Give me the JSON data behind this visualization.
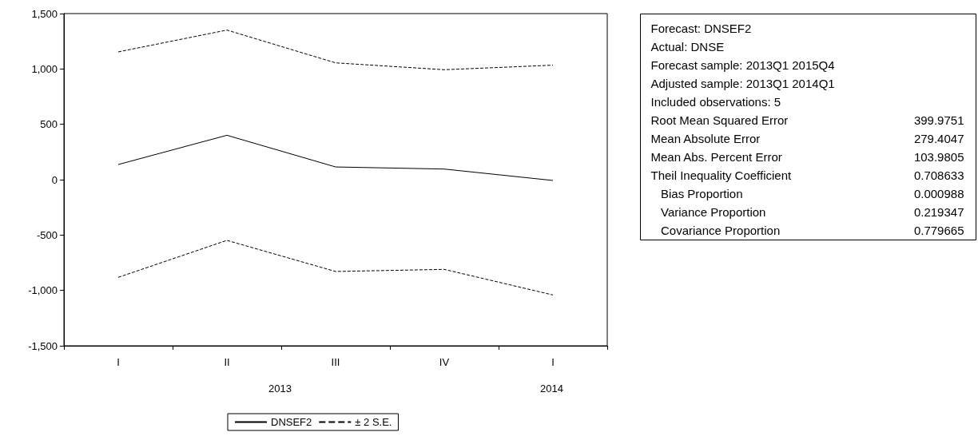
{
  "chart_data": {
    "type": "line",
    "categories": [
      "I",
      "II",
      "III",
      "IV",
      "I"
    ],
    "series": [
      {
        "name": "DNSEF2",
        "color": "#000000",
        "line_style": "solid",
        "values": [
          137,
          401,
          115,
          96,
          -7
        ]
      },
      {
        "name": "± 2 S.E.",
        "color": "#000000",
        "line_style": "dashed",
        "values": [
          1154,
          1351,
          1055,
          993,
          1034
        ]
      },
      {
        "color": "#000000",
        "line_style": "dashed",
        "values": [
          -882,
          -548,
          -829,
          -810,
          -1041
        ]
      }
    ],
    "ylim": [
      -1500,
      1500
    ],
    "yticks": [
      {
        "value": -1500,
        "label": "-1,500"
      },
      {
        "value": -1000,
        "label": "-1,000"
      },
      {
        "value": -500,
        "label": "-500"
      },
      0,
      {
        "value": 500,
        "label": "500"
      },
      {
        "value": 1000,
        "label": "1,000"
      },
      {
        "value": 1500,
        "label": "1,500"
      }
    ],
    "grid": false,
    "legend": "bottom",
    "marker": "none",
    "annotations": [
      "2013",
      "2014",
      "Forecast: DNSEF2",
      "Actual: DNSE",
      "Forecast sample: 2013Q1 2015Q4",
      "Adjusted sample: 2013Q1 2014Q1",
      "Included observations: 5",
      "Root Mean Squared Error\t399.9751",
      "Mean Absolute Error\t279.4047",
      "Mean Abs. Percent Error\t103.9805",
      "Theil Inequality Coefficient\t0.708633",
      "   Bias Proportion\t0.000988",
      "   Variance Proportion\t0.219347",
      "   Covariance Proportion\t0.779665"
    ]
  }
}
